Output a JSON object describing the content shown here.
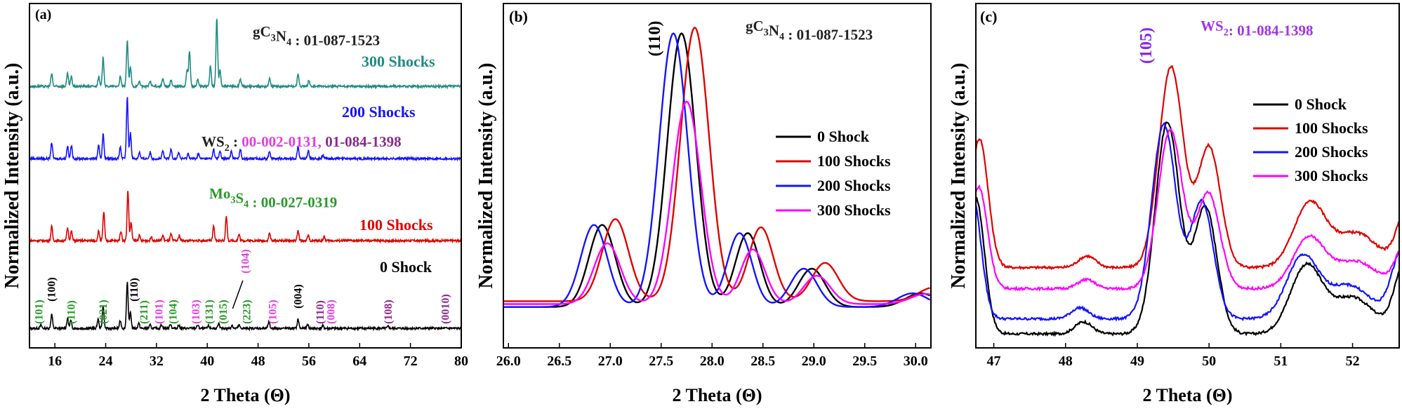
{
  "chart_data": [
    {
      "panel": "(a)",
      "type": "line",
      "xlabel": "2 Theta (Θ)",
      "ylabel": "Normalized Intensity (a.u.)",
      "xlim": [
        12,
        80
      ],
      "xticks": [
        16,
        24,
        32,
        40,
        48,
        56,
        64,
        72,
        80
      ],
      "series": [
        {
          "name": "0 Shock",
          "color": "#000000",
          "offset": 0,
          "peaks": [
            [
              13.8,
              0.05
            ],
            [
              15.5,
              0.22
            ],
            [
              18.0,
              0.15
            ],
            [
              18.5,
              0.12
            ],
            [
              22.8,
              0.14
            ],
            [
              23.6,
              0.35
            ],
            [
              26.3,
              0.12
            ],
            [
              27.4,
              0.72
            ],
            [
              27.9,
              0.25
            ],
            [
              29.2,
              0.08
            ],
            [
              31.0,
              0.05
            ],
            [
              32.8,
              0.06
            ],
            [
              34.2,
              0.07
            ],
            [
              35.5,
              0.05
            ],
            [
              38.5,
              0.05
            ],
            [
              40.2,
              0.04
            ],
            [
              41.8,
              0.06
            ],
            [
              43.9,
              0.05
            ],
            [
              45.0,
              0.05
            ],
            [
              49.7,
              0.1
            ],
            [
              54.3,
              0.14
            ],
            [
              55.8,
              0.06
            ],
            [
              58.2,
              0.04
            ],
            [
              68.5,
              0.03
            ]
          ]
        },
        {
          "name": "100 Shocks",
          "color": "#e00000",
          "offset": 1,
          "peaks": [
            [
              15.5,
              0.22
            ],
            [
              18.0,
              0.2
            ],
            [
              18.6,
              0.15
            ],
            [
              22.9,
              0.15
            ],
            [
              23.7,
              0.45
            ],
            [
              26.4,
              0.15
            ],
            [
              27.5,
              0.78
            ],
            [
              28.0,
              0.28
            ],
            [
              29.3,
              0.08
            ],
            [
              31.2,
              0.06
            ],
            [
              33.0,
              0.08
            ],
            [
              34.3,
              0.1
            ],
            [
              35.6,
              0.08
            ],
            [
              41.0,
              0.22
            ],
            [
              43.0,
              0.38
            ],
            [
              45.0,
              0.1
            ],
            [
              49.8,
              0.12
            ],
            [
              54.3,
              0.15
            ],
            [
              55.9,
              0.08
            ],
            [
              58.4,
              0.06
            ]
          ]
        },
        {
          "name": "200 Shocks",
          "color": "#1414ff",
          "offset": 2,
          "peaks": [
            [
              15.5,
              0.25
            ],
            [
              18.0,
              0.2
            ],
            [
              18.6,
              0.2
            ],
            [
              22.9,
              0.2
            ],
            [
              23.6,
              0.38
            ],
            [
              26.3,
              0.18
            ],
            [
              27.4,
              0.95
            ],
            [
              27.9,
              0.4
            ],
            [
              29.3,
              0.1
            ],
            [
              31.0,
              0.1
            ],
            [
              33.0,
              0.12
            ],
            [
              34.3,
              0.15
            ],
            [
              35.5,
              0.1
            ],
            [
              37.0,
              0.08
            ],
            [
              38.6,
              0.08
            ],
            [
              41.0,
              0.15
            ],
            [
              42.0,
              0.12
            ],
            [
              43.8,
              0.12
            ],
            [
              45.2,
              0.15
            ],
            [
              49.8,
              0.12
            ],
            [
              54.3,
              0.2
            ],
            [
              55.9,
              0.12
            ],
            [
              58.2,
              0.06
            ]
          ]
        },
        {
          "name": "300 Shocks",
          "color": "#1e8c84",
          "offset": 3,
          "peaks": [
            [
              15.5,
              0.2
            ],
            [
              18.0,
              0.2
            ],
            [
              18.6,
              0.15
            ],
            [
              22.9,
              0.15
            ],
            [
              23.6,
              0.45
            ],
            [
              26.3,
              0.15
            ],
            [
              27.4,
              0.72
            ],
            [
              27.9,
              0.3
            ],
            [
              29.3,
              0.08
            ],
            [
              31.0,
              0.08
            ],
            [
              33.0,
              0.12
            ],
            [
              34.3,
              0.1
            ],
            [
              36.8,
              0.25
            ],
            [
              37.2,
              0.55
            ],
            [
              38.5,
              0.1
            ],
            [
              40.5,
              0.32
            ],
            [
              41.5,
              1.05
            ],
            [
              42.0,
              0.25
            ],
            [
              45.2,
              0.12
            ],
            [
              49.8,
              0.12
            ],
            [
              54.3,
              0.2
            ],
            [
              56.0,
              0.1
            ]
          ]
        }
      ],
      "texts": [
        {
          "id": "a_ref1",
          "text": "gC3N4 : 01-087-1523",
          "color": "#222222"
        },
        {
          "id": "a_lab300",
          "text": "300 Shocks",
          "color": "#1e8c84"
        },
        {
          "id": "a_lab200",
          "text": "200 Shocks",
          "color": "#1414ff"
        },
        {
          "id": "a_ws2a",
          "text": "WS2 : ",
          "color": "#222222"
        },
        {
          "id": "a_ws2b",
          "text": "00-002-0131, ",
          "color": "#e040e0"
        },
        {
          "id": "a_ws2c",
          "text": "01-084-1398",
          "color": "#8b2a8b"
        },
        {
          "id": "a_mo3s4",
          "text": "Mo3S4 : 00-027-0319",
          "color": "#2a9a2a"
        },
        {
          "id": "a_lab100",
          "text": "100 Shocks",
          "color": "#e00000"
        },
        {
          "id": "a_lab0",
          "text": "0 Shock",
          "color": "#000000"
        }
      ],
      "hkl": [
        {
          "t": "(101)",
          "x": 13.5,
          "c": "#2a9a2a"
        },
        {
          "t": "(100)",
          "x": 15.5,
          "c": "#000000"
        },
        {
          "t": "(110)",
          "x": 18.6,
          "c": "#2a9a2a"
        },
        {
          "t": "(021)",
          "x": 23.6,
          "c": "#2a9a2a"
        },
        {
          "t": "(110)",
          "x": 28.5,
          "c": "#000000"
        },
        {
          "t": "(211)",
          "x": 30.0,
          "c": "#2a9a2a"
        },
        {
          "t": "(101)",
          "x": 32.4,
          "c": "#e040e0"
        },
        {
          "t": "(104)",
          "x": 34.6,
          "c": "#2a9a2a"
        },
        {
          "t": "(103)",
          "x": 38.2,
          "c": "#e040e0"
        },
        {
          "t": "(131)",
          "x": 40.3,
          "c": "#2a9a2a"
        },
        {
          "t": "(015)",
          "x": 42.5,
          "c": "#2a9a2a"
        },
        {
          "t": "(104)",
          "x": 46.0,
          "c": "#e040e0"
        },
        {
          "t": "(223)",
          "x": 46.2,
          "c": "#2a9a2a"
        },
        {
          "t": "(105)",
          "x": 50.3,
          "c": "#e040e0"
        },
        {
          "t": "(004)",
          "x": 54.3,
          "c": "#000000"
        },
        {
          "t": "(110)",
          "x": 57.8,
          "c": "#8b2a8b"
        },
        {
          "t": "(008)",
          "x": 59.5,
          "c": "#e040e0"
        },
        {
          "t": "(108)",
          "x": 68.5,
          "c": "#8b2a8b"
        },
        {
          "t": "(0010)",
          "x": 77.5,
          "c": "#8b2a8b"
        }
      ]
    },
    {
      "panel": "(b)",
      "type": "line",
      "xlabel": "2 Theta (Θ)",
      "ylabel": "Normalized Intensity (a.u.)",
      "xlim": [
        25.95,
        30.15
      ],
      "xticks": [
        26.0,
        26.5,
        27.0,
        27.5,
        28.0,
        28.5,
        29.0,
        29.5,
        30.0
      ],
      "annotation": "(110)",
      "reference": "gC3N4 : 01-087-1523",
      "series": [
        {
          "name": "0 Shock",
          "color": "#000000",
          "base": 0.02,
          "shift": 0.0,
          "scale": 1.0
        },
        {
          "name": "100 Shocks",
          "color": "#e00000",
          "base": 0.04,
          "shift": 0.13,
          "scale": 1.0
        },
        {
          "name": "200 Shocks",
          "color": "#1414ff",
          "base": 0.02,
          "shift": -0.08,
          "scale": 1.0
        },
        {
          "name": "300 Shocks",
          "color": "#ff00ff",
          "base": 0.03,
          "shift": 0.05,
          "scale": 0.74
        }
      ]
    },
    {
      "panel": "(c)",
      "type": "line",
      "xlabel": "2 Theta (Θ)",
      "ylabel": "Normalized Intensity (a.u.)",
      "xlim": [
        46.75,
        52.65
      ],
      "xticks": [
        47,
        48,
        49,
        50,
        51,
        52
      ],
      "annotation": "(105)",
      "reference": "WS2:  01-084-1398",
      "series": [
        {
          "name": "0 Shock",
          "color": "#000000",
          "base": 0.0
        },
        {
          "name": "100 Shocks",
          "color": "#e00000",
          "base": 0.22
        },
        {
          "name": "200 Shocks",
          "color": "#1414ff",
          "base": 0.05
        },
        {
          "name": "300 Shocks",
          "color": "#ff00ff",
          "base": 0.15
        }
      ]
    }
  ]
}
